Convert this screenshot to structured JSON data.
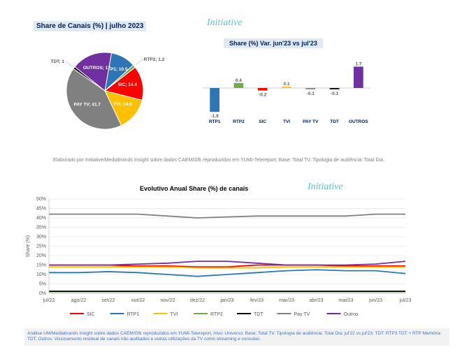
{
  "header": {
    "pie_title": "Share de Canais (%) | julho 2023",
    "bar_title": "Share (%) Var. jun'23 vs jul'23",
    "initiative": "Initiative"
  },
  "pie": {
    "slices": [
      {
        "label": "RTP1; 10.5",
        "value": 10.5,
        "color": "#2e75b6",
        "label_inside": true
      },
      {
        "label": "RTP2; 1.2",
        "value": 1.2,
        "color": "#70ad47",
        "label_inside": false
      },
      {
        "label": "SIC; 14.4",
        "value": 14.4,
        "color": "#ff0000",
        "label_inside": true
      },
      {
        "label": "TVI; 14.0",
        "value": 14.0,
        "color": "#ffc000",
        "label_inside": true
      },
      {
        "label": "PAY TV; 41.7",
        "value": 41.7,
        "color": "#808080",
        "label_inside": true
      },
      {
        "label": "TDT; 1",
        "value": 1.0,
        "color": "#000000",
        "label_inside": false
      },
      {
        "label": "OUTROS; 17",
        "value": 17.0,
        "color": "#7030a0",
        "label_inside": true
      }
    ]
  },
  "bar": {
    "categories": [
      "RTP1",
      "RTP2",
      "SIC",
      "TVI",
      "PAY TV",
      "TDT",
      "OUTROS"
    ],
    "values": [
      -1.9,
      0.4,
      -0.2,
      0.1,
      -0.1,
      -0.1,
      1.7
    ],
    "colors": [
      "#2e75b6",
      "#70ad47",
      "#ff0000",
      "#ffc000",
      "#808080",
      "#000000",
      "#7030a0"
    ]
  },
  "footnote1": "Elaborado por Initiative/Mediabrands Insight sobre dados CAEM/Gfk reproduzidos em YUMI-Telereport;  Base: Total TV. Tipologia de audiência: Total Dia.",
  "line_chart": {
    "title": "Evolutivo Anual Share (%) de canais",
    "ylabel": "Share (%)",
    "x_labels": [
      "jul/22",
      "ago/22",
      "set/22",
      "out/22",
      "nov/22",
      "dez/22",
      "jan/23",
      "fev/23",
      "mar/23",
      "abr/23",
      "mai/23",
      "jun/23",
      "jul/23"
    ],
    "y_ticks": [
      0,
      5,
      10,
      15,
      20,
      25,
      30,
      35,
      40,
      45,
      50
    ],
    "series": [
      {
        "name": "SIC",
        "color": "#ff0000",
        "values": [
          15,
          15,
          15,
          14.5,
          14.5,
          14,
          14,
          15,
          15,
          15,
          14.5,
          14.5,
          14.5
        ]
      },
      {
        "name": "RTP1",
        "color": "#2e75b6",
        "values": [
          11,
          11,
          11.5,
          11,
          10,
          9,
          10,
          11,
          12,
          12.5,
          12,
          12,
          10.5
        ]
      },
      {
        "name": "TVI",
        "color": "#ffc000",
        "values": [
          14,
          14,
          14,
          14,
          14,
          13.5,
          13.5,
          13.5,
          14,
          14,
          14,
          14,
          14
        ]
      },
      {
        "name": "RTP2",
        "color": "#70ad47",
        "values": [
          1.2,
          1.2,
          1.2,
          1.2,
          1.2,
          1.2,
          1.2,
          1.2,
          1.2,
          1.2,
          1.2,
          1.2,
          1.2
        ]
      },
      {
        "name": "TDT",
        "color": "#000000",
        "values": [
          1,
          1,
          1,
          1,
          1,
          1,
          1,
          1,
          1,
          1,
          1,
          1,
          1
        ]
      },
      {
        "name": "Pay TV",
        "color": "#808080",
        "values": [
          42,
          42,
          42,
          42,
          41,
          40,
          40.5,
          41,
          41,
          41,
          41,
          42,
          42
        ]
      },
      {
        "name": "Outros",
        "color": "#7030a0",
        "values": [
          15,
          15,
          15,
          15.5,
          16,
          17,
          17,
          16,
          15,
          15,
          15,
          15.5,
          17
        ]
      }
    ]
  },
  "footnote2": "Análise UM/Mediabrands Insight sobre dados CAEM/Gfk reproduzidos em YUMI-Telereport; Alvo: Universo; Base: Total TV. Tipologia de audiência: Total Dia; jul'22 vs jul'23; TDT: RTP3 TDT + RTP Memória TDT; Outros: Visionamento residual de canais não auditados e outras utilizações da TV como streaming e consolas."
}
